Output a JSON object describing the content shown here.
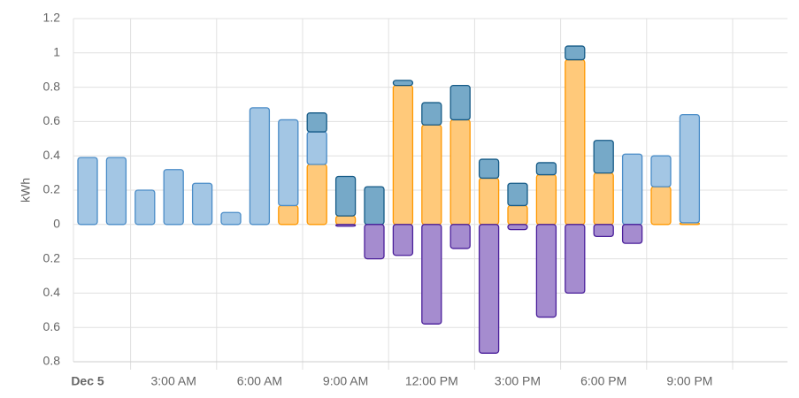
{
  "chart_data": {
    "type": "stacked_bar",
    "y_label": "kWh",
    "categories": [
      "Dec 5",
      null,
      null,
      "3:00 AM",
      null,
      null,
      "6:00 AM",
      null,
      null,
      "9:00 AM",
      null,
      null,
      "12:00 PM",
      null,
      null,
      "3:00 PM",
      null,
      null,
      "6:00 PM",
      null,
      null,
      "9:00 PM"
    ],
    "series": [
      {
        "color": "#ffc97a",
        "stroke": "#ff9800",
        "values": [
          null,
          null,
          null,
          null,
          null,
          null,
          null,
          0.11,
          0.35,
          0.05,
          null,
          0.81,
          0.58,
          0.61,
          0.27,
          0.11,
          0.29,
          0.96,
          0.3,
          null,
          0.22,
          0.01
        ]
      },
      {
        "color": "#a3c6e4",
        "stroke": "#4a8cc7",
        "values": [
          0.39,
          0.39,
          0.2,
          0.32,
          0.24,
          0.07,
          0.68,
          0.5,
          0.19,
          null,
          null,
          null,
          null,
          null,
          null,
          null,
          null,
          null,
          null,
          0.41,
          0.18,
          0.63
        ]
      },
      {
        "color": "#76a9c8",
        "stroke": "#155a86",
        "values": [
          null,
          null,
          null,
          null,
          null,
          null,
          null,
          null,
          0.11,
          0.23,
          0.22,
          0.03,
          0.13,
          0.2,
          0.11,
          0.13,
          0.07,
          0.08,
          0.19,
          null,
          null,
          null
        ]
      },
      {
        "color": "#a58ccf",
        "stroke": "#4a1f9a",
        "values": [
          null,
          null,
          null,
          null,
          null,
          null,
          null,
          null,
          null,
          -0.01,
          -0.2,
          -0.18,
          -0.58,
          -0.14,
          -0.75,
          -0.03,
          -0.54,
          -0.4,
          -0.07,
          -0.11,
          null,
          null
        ]
      }
    ],
    "ylim": [
      -0.8,
      1.2
    ],
    "yticks": [
      {
        "value": -0.8,
        "label": "0.8"
      },
      {
        "value": -0.6,
        "label": "0.6"
      },
      {
        "value": -0.4,
        "label": "0.4"
      },
      {
        "value": -0.2,
        "label": "0.2"
      },
      0,
      0.2,
      0.4,
      0.6,
      0.8,
      1,
      1.2
    ],
    "grid": true
  }
}
